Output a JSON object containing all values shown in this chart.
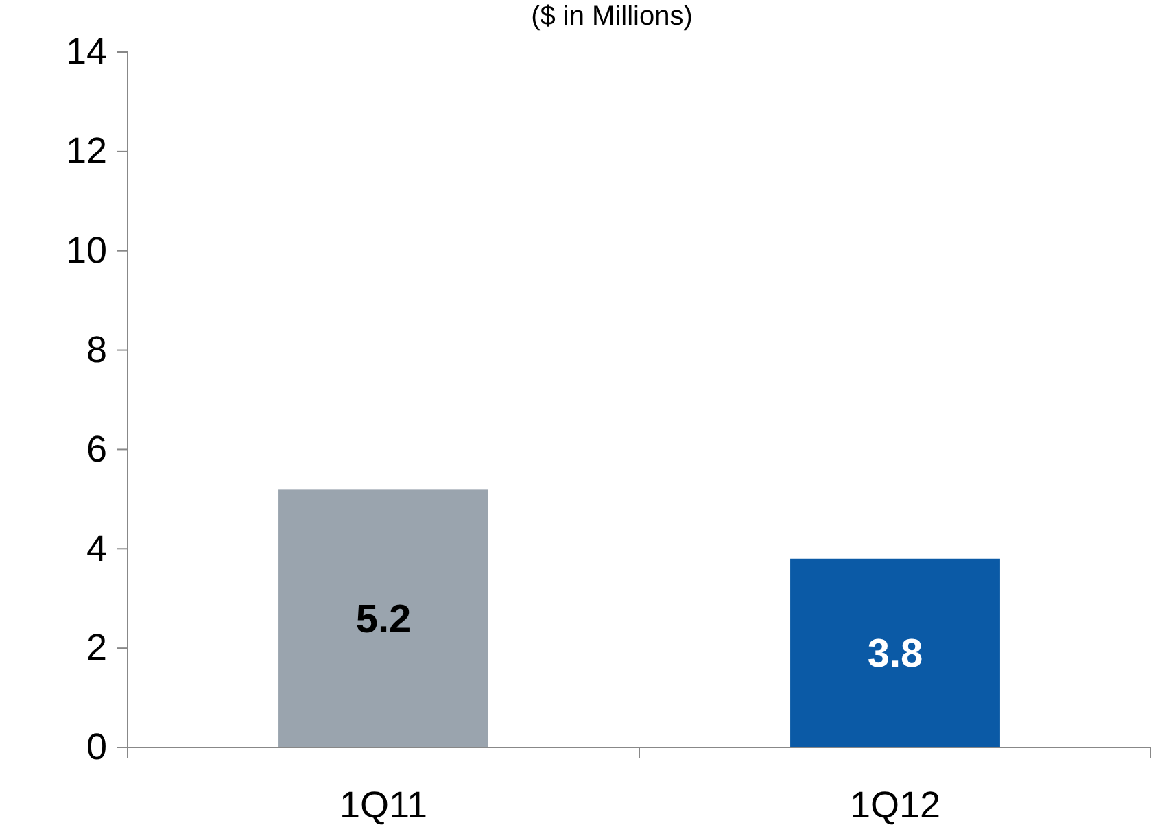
{
  "chart_data": {
    "type": "bar",
    "subtitle": "($ in Millions)",
    "categories": [
      "1Q11",
      "1Q12"
    ],
    "values": [
      5.2,
      3.8
    ],
    "colors": [
      "#9aa4ae",
      "#0b5aa6"
    ],
    "ylim": [
      0,
      14
    ],
    "yticks": [
      0,
      2,
      4,
      6,
      8,
      10,
      12,
      14
    ],
    "data_labels": true
  }
}
